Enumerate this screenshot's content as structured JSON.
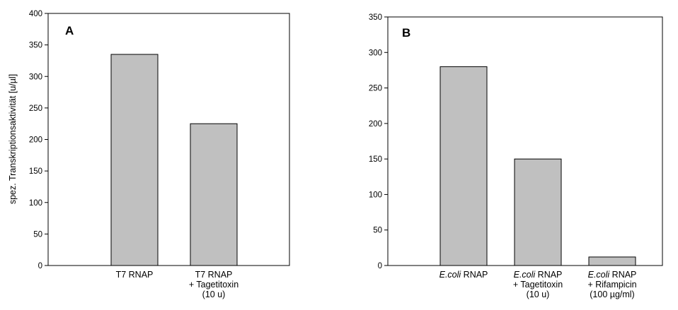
{
  "chart_data": [
    {
      "type": "bar",
      "panel_label": "A",
      "ylabel": "spez. Transkriptionsaktivität [u/µl]",
      "ylim": [
        0,
        400
      ],
      "yticks": [
        0,
        50,
        100,
        150,
        200,
        250,
        300,
        350,
        400
      ],
      "bar_color": "#c0c0c0",
      "categories": [
        [
          "T7 RNAP"
        ],
        [
          "T7 RNAP",
          "+ Tagetitoxin",
          "(10 u)"
        ]
      ],
      "values": [
        335,
        225
      ]
    },
    {
      "type": "bar",
      "panel_label": "B",
      "ylim": [
        0,
        350
      ],
      "yticks": [
        0,
        50,
        100,
        150,
        200,
        250,
        300,
        350
      ],
      "bar_color": "#c0c0c0",
      "categories": [
        [
          "E.coli RNAP"
        ],
        [
          "E.coli RNAP",
          "+ Tagetitoxin",
          "(10 u)"
        ],
        [
          "E.coli RNAP",
          "+ Rifampicin",
          "(100 µg/ml)"
        ]
      ],
      "values": [
        280,
        150,
        12
      ]
    }
  ]
}
